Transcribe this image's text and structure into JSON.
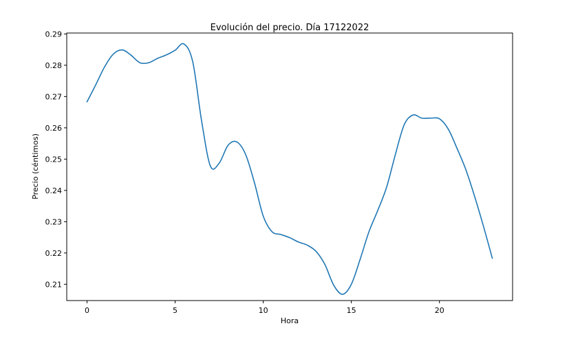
{
  "chart_data": {
    "type": "line",
    "title": "Evolución del precio. Día 17122022",
    "xlabel": "Hora",
    "ylabel": "Precio (céntimos)",
    "xlim": [
      -1.15,
      24.15
    ],
    "ylim": [
      0.2048,
      0.2903
    ],
    "grid": false,
    "x_ticks": [
      0,
      5,
      10,
      15,
      20
    ],
    "y_ticks": [
      0.21,
      0.22,
      0.23,
      0.24,
      0.25,
      0.26,
      0.27,
      0.28,
      0.29
    ],
    "x_tick_labels": [
      "0",
      "5",
      "10",
      "15",
      "20"
    ],
    "y_tick_labels": [
      "0.21",
      "0.22",
      "0.23",
      "0.24",
      "0.25",
      "0.26",
      "0.27",
      "0.28",
      "0.29"
    ],
    "series": [
      {
        "color": "#1f77b4",
        "x": [
          0,
          0.5,
          1,
          1.5,
          2,
          2.5,
          3,
          3.5,
          4,
          4.5,
          5,
          5.5,
          6,
          6.5,
          7,
          7.5,
          8,
          8.5,
          9,
          9.5,
          10,
          10.5,
          11,
          11.5,
          12,
          12.5,
          13,
          13.5,
          14,
          14.5,
          15,
          15.5,
          16,
          16.5,
          17,
          17.5,
          18,
          18.5,
          19,
          19.5,
          20,
          20.5,
          21,
          21.5,
          22,
          22.5,
          23
        ],
        "y": [
          0.2683,
          0.2738,
          0.2795,
          0.2836,
          0.2849,
          0.2832,
          0.2808,
          0.2808,
          0.2822,
          0.2833,
          0.2848,
          0.2868,
          0.2811,
          0.2623,
          0.2478,
          0.2487,
          0.2544,
          0.2555,
          0.2515,
          0.2425,
          0.2318,
          0.2268,
          0.2259,
          0.2249,
          0.2235,
          0.2225,
          0.2205,
          0.2163,
          0.2097,
          0.2068,
          0.21,
          0.218,
          0.2268,
          0.2336,
          0.241,
          0.2515,
          0.261,
          0.2641,
          0.2631,
          0.2631,
          0.2629,
          0.2596,
          0.2534,
          0.2466,
          0.238,
          0.2285,
          0.2183
        ]
      }
    ]
  }
}
